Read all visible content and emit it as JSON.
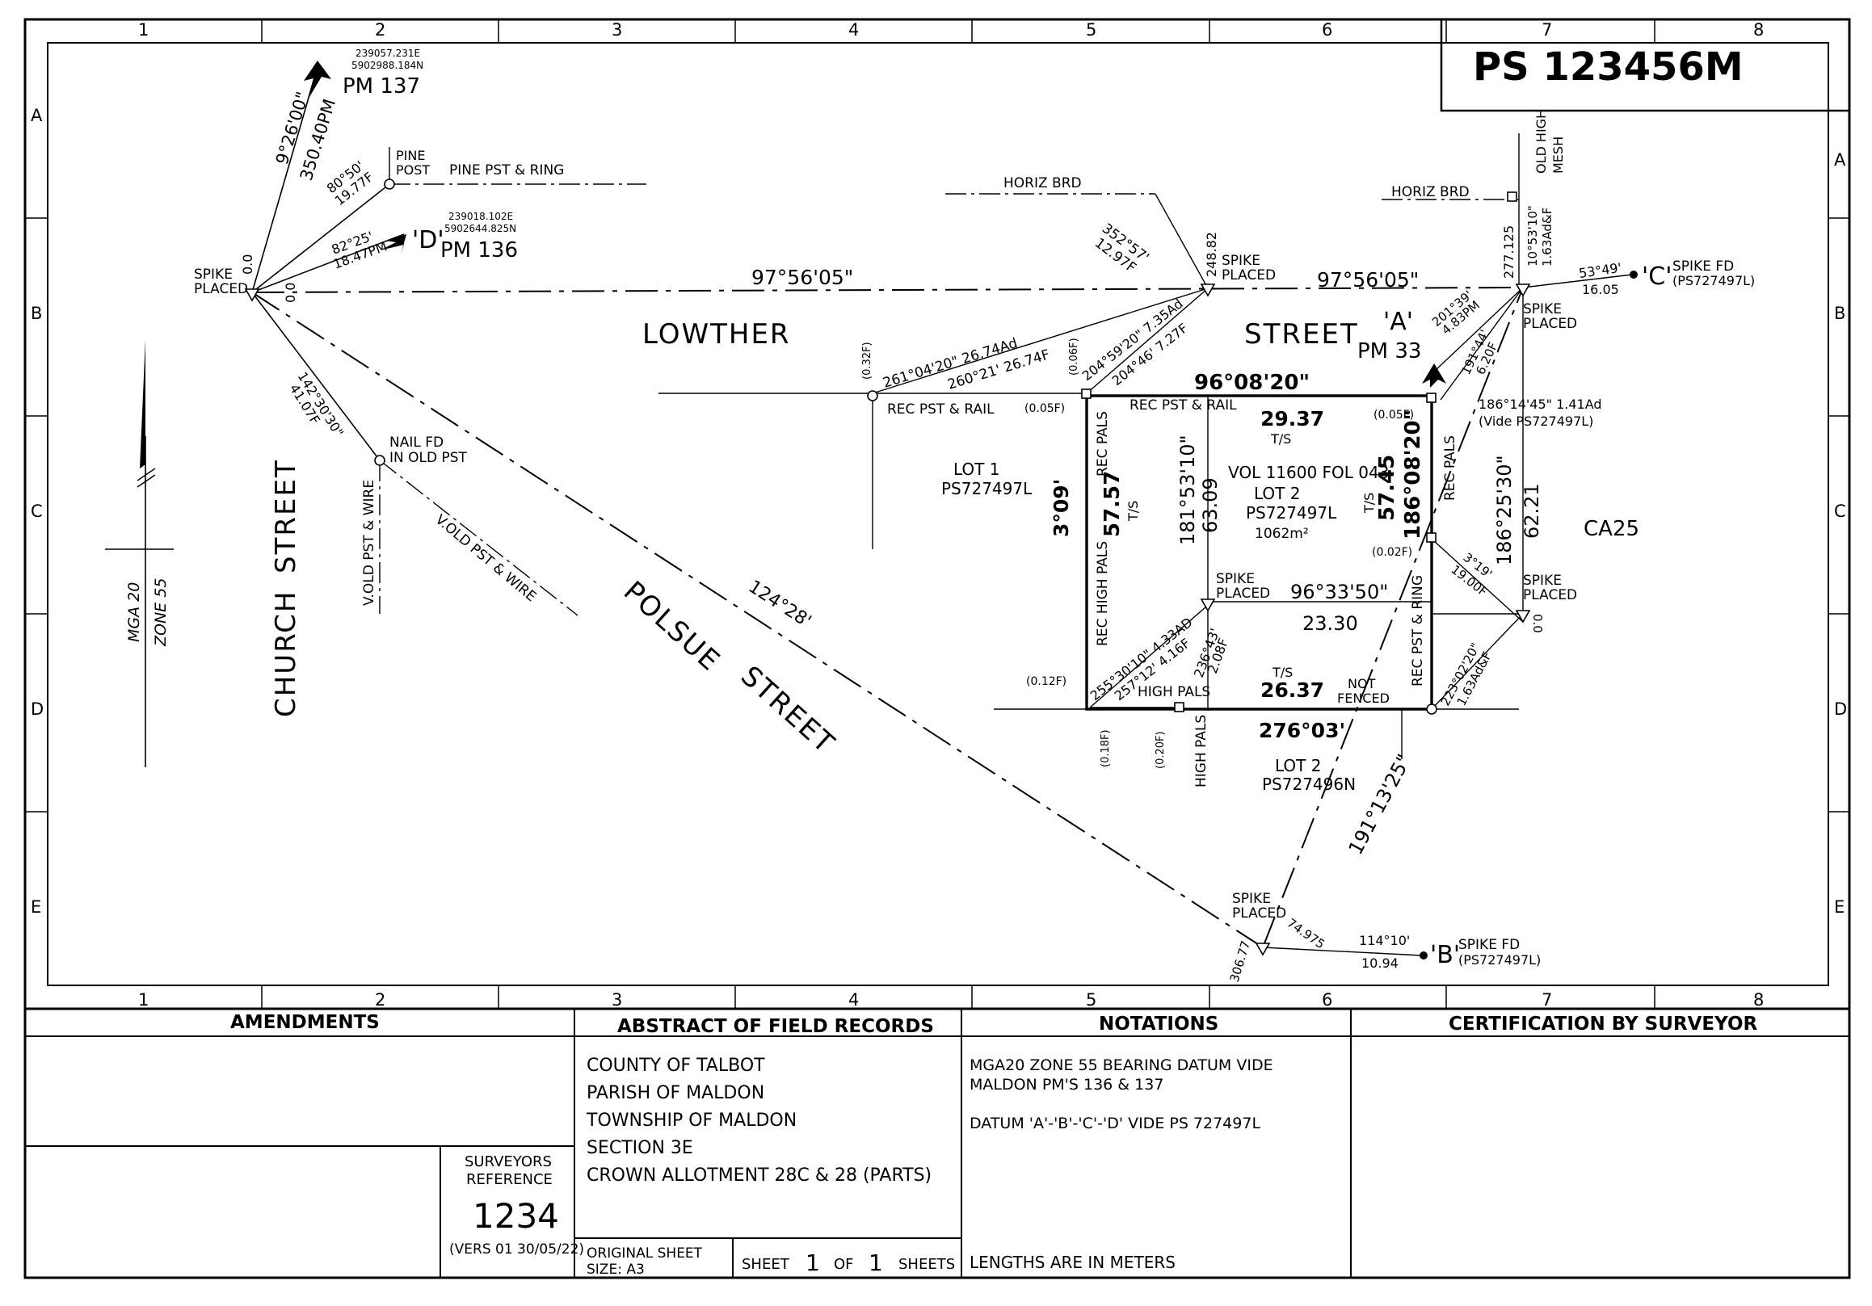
{
  "plan_number": "PS 123456M",
  "grid": {
    "columns": [
      "1",
      "2",
      "3",
      "4",
      "5",
      "6",
      "7",
      "8"
    ],
    "rows": [
      "A",
      "B",
      "C",
      "D",
      "E"
    ]
  },
  "streets": {
    "lowther": "LOWTHER",
    "street_a": "STREET",
    "church": "CHURCH",
    "church_street": "STREET",
    "polsue": "POLSUE",
    "polsue_street": "STREET"
  },
  "north_arrow": {
    "zone1": "MGA 20",
    "zone2": "ZONE 55"
  },
  "marks": {
    "pm137": {
      "label": "PM 137",
      "easting": "239057.231E",
      "northing": "5902988.184N"
    },
    "pm136": {
      "id": "'D'",
      "label": "PM 136",
      "easting": "239018.102E",
      "northing": "5902644.825N"
    },
    "pm33": {
      "id": "'A'",
      "label": "PM 33"
    },
    "c": {
      "id": "'C'",
      "desc1": "SPIKE FD",
      "desc2": "(PS727497L)"
    },
    "b": {
      "id": "'B'",
      "desc1": "SPIKE FD",
      "desc2": "(PS727497L)"
    }
  },
  "labels": {
    "spike_placed_1": "SPIKE",
    "placed_1": "PLACED",
    "spike_placed_2": "SPIKE",
    "placed_2": "PLACED",
    "spike_placed_3": "SPIKE",
    "placed_3": "PLACED",
    "spike_placed_4": "SPIKE",
    "placed_4": "PLACED",
    "spike_placed_5": "SPIKE",
    "placed_5": "PLACED",
    "spike_placed_6": "SPIKE",
    "placed_6": "PLACED",
    "pine_post_1": "PINE",
    "pine_post_2": "POST",
    "pine_pst_ring": "PINE PST & RING",
    "horiz_brd_1": "HORIZ BRD",
    "horiz_brd_2": "HORIZ BRD",
    "old_high_1": "OLD HIGH",
    "old_high_2": "MESH",
    "nail_fd_1": "NAIL FD",
    "nail_fd_2": "IN OLD PST",
    "v_old_pst_wire_1": "V.OLD PST & WIRE",
    "v_old_pst_wire_2": "V.OLD PST & WIRE",
    "rec_pst_rail_1": "REC PST & RAIL",
    "rec_pst_rail_2": "REC PST & RAIL",
    "rec_pals_1": "REC PALS",
    "rec_pals_2": "REC PALS",
    "rec_high_pals": "REC HIGH PALS",
    "rec_pst_ring": "REC PST & RING",
    "high_pals_1": "HIGH PALS",
    "high_pals_2": "HIGH PALS",
    "not_fenced_1": "NOT",
    "not_fenced_2": "FENCED",
    "ca25": "CA25"
  },
  "parcels": {
    "lot1": {
      "name": "LOT 1",
      "plan": "PS727497L"
    },
    "lot2": {
      "vol": "VOL 11600 FOL 043",
      "name": "LOT 2",
      "plan": "PS727497L",
      "area": "1062m²"
    },
    "lot2s": {
      "name": "LOT 2",
      "plan": "PS727496N"
    }
  },
  "dimensions": {
    "b_main": "97°56'05\"",
    "b_main2": "97°56'05\"",
    "top_bearing": "96°08'20\"",
    "top_len": "29.37",
    "top_ts": "T/S",
    "left_bearing": "3°09'",
    "left_len": "57.57",
    "left_ts": "T/S",
    "right_bearing": "186°08'20\"",
    "right_len": "57.45",
    "right_ts": "T/S",
    "bot_bearing": "276°03'",
    "bot_len": "26.37",
    "bot_ts": "T/S",
    "mid_bearing": "96°33'50\"",
    "mid_len": "23.30",
    "int_bearing": "181°53'10\"",
    "int_len": "63.09",
    "r_bearing": "186°25'30\"",
    "r_len": "62.21",
    "polsue_bearing": "124°28'",
    "se_bearing": "191°13'25\"",
    "pm137_b": "9°26'00\"",
    "pm137_d": "350.40PM",
    "pine_b": "80°50'",
    "pine_d": "19.77F",
    "pm136_b": "82°25'",
    "pm136_d": "18.47PM",
    "nail_b": "142°30'30\"",
    "nail_d": "41.07F",
    "off1": "0.0",
    "off2": "0.0",
    "rec_b1": "261°04'20\" 26.74Ad",
    "rec_b2": "260°21' 26.74F",
    "f1": "(0.32F)",
    "f2": "(0.06F)",
    "f3": "(0.05F)",
    "f4": "(0.05F)",
    "f5": "(0.02F)",
    "f6": "(0.12F)",
    "f7": "(0.18F)",
    "f8": "(0.20F)",
    "spk_b1": "204°59'20\" 7.35Ad",
    "spk_b2": "204°46' 7.27F",
    "hb_b": "352°57'",
    "hb_d": "12.97F",
    "c248": "248.82",
    "c277": "277.125",
    "mesh_b": "10°53'10\"",
    "mesh_d": "1.63Ad&F",
    "c_b": "53°49'",
    "c_d": "16.05",
    "pm33_b": "201°39'",
    "pm33_d": "4.83PM",
    "pm33_b2": "191°44'",
    "pm33_d2": "6.20F",
    "rt_b": "186°14'45\" 1.41Ad",
    "rt_b2": "(Vide PS727497L)",
    "r3_b": "3°19'",
    "r3_d": "19.00F",
    "r_off": "0.0",
    "r223_b": "223°02'20\"",
    "r223_d": "1.63Ad&F",
    "sw_b1": "255°30'10\" 4.33AD",
    "sw_b2": "257°12' 4.16F",
    "sw_b3": "236°43'",
    "sw_d3": "2.08F",
    "b_b": "114°10'",
    "b_d": "10.94",
    "b_306": "306.77",
    "b_74": "74.975"
  },
  "panels": {
    "amendments": "AMENDMENTS",
    "abstract": "ABSTRACT OF FIELD RECORDS",
    "notations": "NOTATIONS",
    "certification": "CERTIFICATION BY SURVEYOR",
    "surveyors_ref_1": "SURVEYORS",
    "surveyors_ref_2": "REFERENCE",
    "ref_number": "1234",
    "version": "(VERS 01 30/05/22)",
    "abstract_lines": [
      "COUNTY OF TALBOT",
      "PARISH OF MALDON",
      "TOWNSHIP OF MALDON",
      "SECTION 3E",
      "CROWN ALLOTMENT  28C & 28 (PARTS)"
    ],
    "orig_sheet_1": "ORIGINAL SHEET",
    "orig_sheet_2": "SIZE:  A3",
    "sheet_word": "SHEET",
    "sheet_num": "1",
    "of_word": "OF",
    "sheet_total": "1",
    "sheets_word": "SHEETS",
    "notation_lines": [
      "MGA20 ZONE 55 BEARING DATUM VIDE",
      "MALDON PM'S 136 & 137",
      "",
      "DATUM 'A'-'B'-'C'-'D' VIDE PS 727497L"
    ],
    "lengths_note": "LENGTHS ARE IN METERS"
  }
}
